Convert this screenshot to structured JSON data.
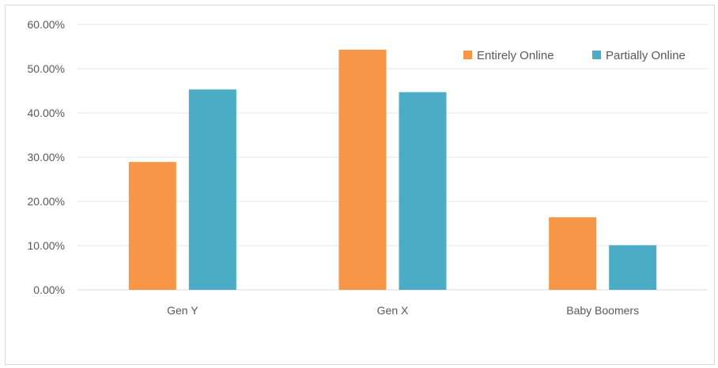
{
  "chart_data": {
    "type": "bar",
    "categories": [
      "Gen Y",
      "Gen X",
      "Baby Boomers"
    ],
    "series": [
      {
        "name": "Entirely Online",
        "color": "#f79646",
        "values": [
          28.9,
          54.3,
          16.4
        ]
      },
      {
        "name": "Partially Online",
        "color": "#4bacc6",
        "values": [
          45.3,
          44.7,
          10.1
        ]
      }
    ],
    "ylim": [
      0,
      60
    ],
    "yticks": [
      0,
      10,
      20,
      30,
      40,
      50,
      60
    ],
    "ytick_labels": [
      "0.00%",
      "10.00%",
      "20.00%",
      "30.00%",
      "40.00%",
      "50.00%",
      "60.00%"
    ],
    "grid": true,
    "legend_position": "top-right",
    "title": "",
    "xlabel": "",
    "ylabel": ""
  }
}
